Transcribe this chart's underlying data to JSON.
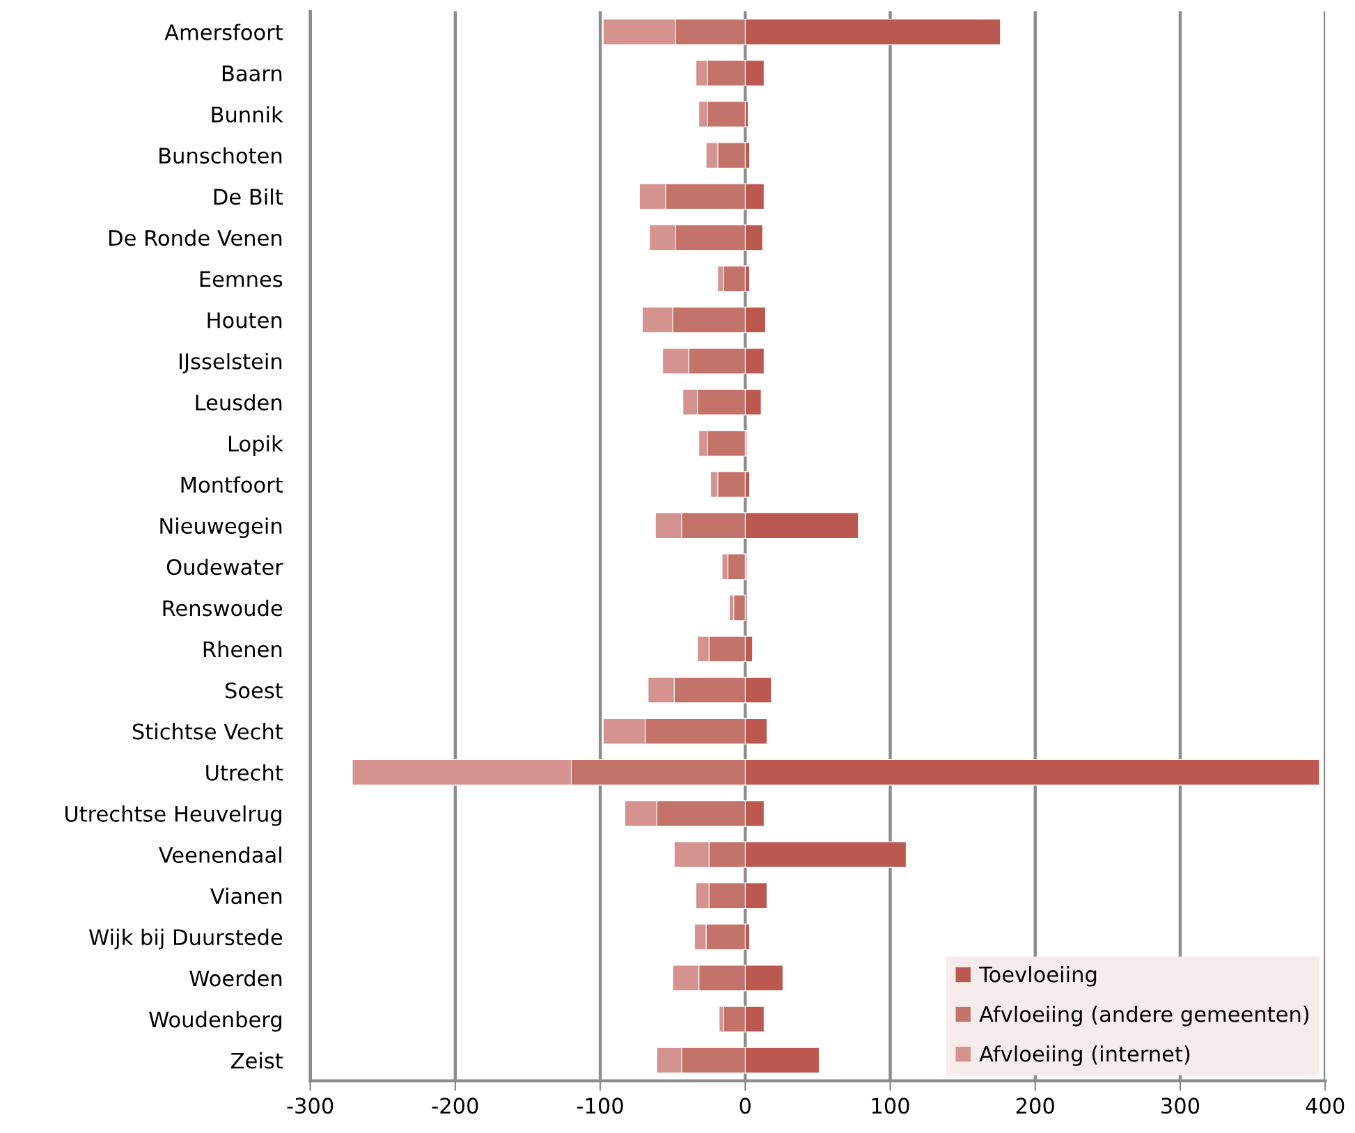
{
  "chart_data": {
    "type": "bar",
    "orientation": "horizontal",
    "stacked": true,
    "categories": [
      "Amersfoort",
      "Baarn",
      "Bunnik",
      "Bunschoten",
      "De Bilt",
      "De Ronde Venen",
      "Eemnes",
      "Houten",
      "IJsselstein",
      "Leusden",
      "Lopik",
      "Montfoort",
      "Nieuwegein",
      "Oudewater",
      "Renswoude",
      "Rhenen",
      "Soest",
      "Stichtse Vecht",
      "Utrecht",
      "Utrechtse Heuvelrug",
      "Veenendaal",
      "Vianen",
      "Wijk bij Duurstede",
      "Woerden",
      "Woudenberg",
      "Zeist"
    ],
    "series": [
      {
        "name": "Toevloeiing",
        "color": "#bb5850",
        "values": [
          176,
          13,
          2,
          3,
          13,
          12,
          3,
          14,
          13,
          11,
          1,
          3,
          78,
          1,
          null,
          5,
          18,
          15,
          396,
          13,
          111,
          15,
          3,
          26,
          13,
          51
        ]
      },
      {
        "name": "Afvloeiing (andere gemeenten)",
        "color": "#c4736b",
        "values": [
          -48,
          -26,
          -26,
          -19,
          -55,
          -48,
          -15,
          -50,
          -39,
          -33,
          -26,
          -19,
          -44,
          -12,
          -8,
          -25,
          -49,
          -69,
          -120,
          -61,
          -25,
          -25,
          -27,
          -32,
          -15,
          -44
        ]
      },
      {
        "name": "Afvloeiing (internet)",
        "color": "#d4938e",
        "values": [
          -50,
          -8,
          -6,
          -8,
          -18,
          -18,
          -4,
          -21,
          -18,
          -10,
          -6,
          -5,
          -18,
          -4,
          -3,
          -8,
          -18,
          -29,
          -151,
          -22,
          -24,
          -9,
          -8,
          -18,
          -3,
          -17
        ]
      }
    ],
    "xlim": [
      -300,
      400
    ],
    "xticks": [
      -300,
      -200,
      -100,
      0,
      100,
      200,
      300,
      400
    ],
    "grid": "x",
    "legend": "bottom right"
  }
}
